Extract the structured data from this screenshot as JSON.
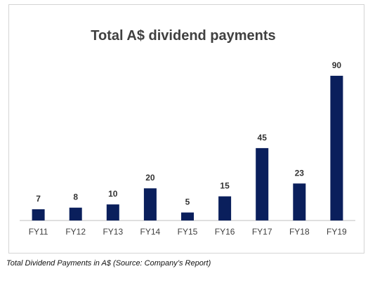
{
  "chart_data": {
    "type": "bar",
    "title": "Total A$ dividend payments",
    "categories": [
      "FY11",
      "FY12",
      "FY13",
      "FY14",
      "FY15",
      "FY16",
      "FY17",
      "FY18",
      "FY19"
    ],
    "values": [
      7,
      8,
      10,
      20,
      5,
      15,
      45,
      23,
      90
    ],
    "xlabel": "",
    "ylabel": "",
    "ylim": [
      0,
      100
    ],
    "grid": false,
    "legend": "none",
    "bar_color": "#0a1f5c"
  },
  "caption": "Total Dividend Payments in A$ (Source: Company’s Report)"
}
